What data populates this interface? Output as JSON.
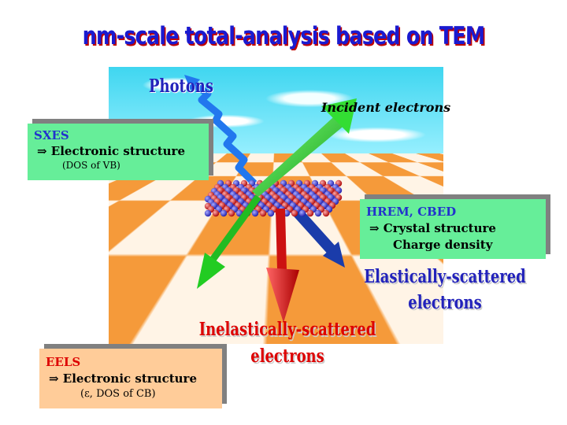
{
  "title": "nm-scale total-analysis based on TEM",
  "labels": {
    "photons": "Photons",
    "incident": "Incident electrons",
    "elastic_1": "Elastically-scattered",
    "elastic_2": "electrons",
    "inelastic_1": "Inelastically-scattered",
    "inelastic_2": "electrons"
  },
  "boxes": {
    "sxes": {
      "heading": "SXES",
      "line1": "⇒ Electronic structure",
      "line2": "(DOS of VB)",
      "bg": "#66ee99",
      "heading_color": "#2233cc"
    },
    "hrem": {
      "heading": "HREM, CBED",
      "line1": "⇒ Crystal structure",
      "line2": "Charge density",
      "bg": "#66ee99",
      "heading_color": "#2233cc"
    },
    "eels": {
      "heading": "EELS",
      "line1": "⇒ Electronic structure",
      "line2": "(ε, DOS of CB)",
      "bg": "#ffcc99",
      "heading_color": "#dd0000"
    }
  },
  "colors": {
    "title": "#1a1ad0",
    "title_shadow": "#c00000",
    "arrow_incident": "#22cc22",
    "arrow_photon": "#2277ee",
    "arrow_elastic": "#1a3caa",
    "arrow_inelastic": "#ee1111"
  }
}
